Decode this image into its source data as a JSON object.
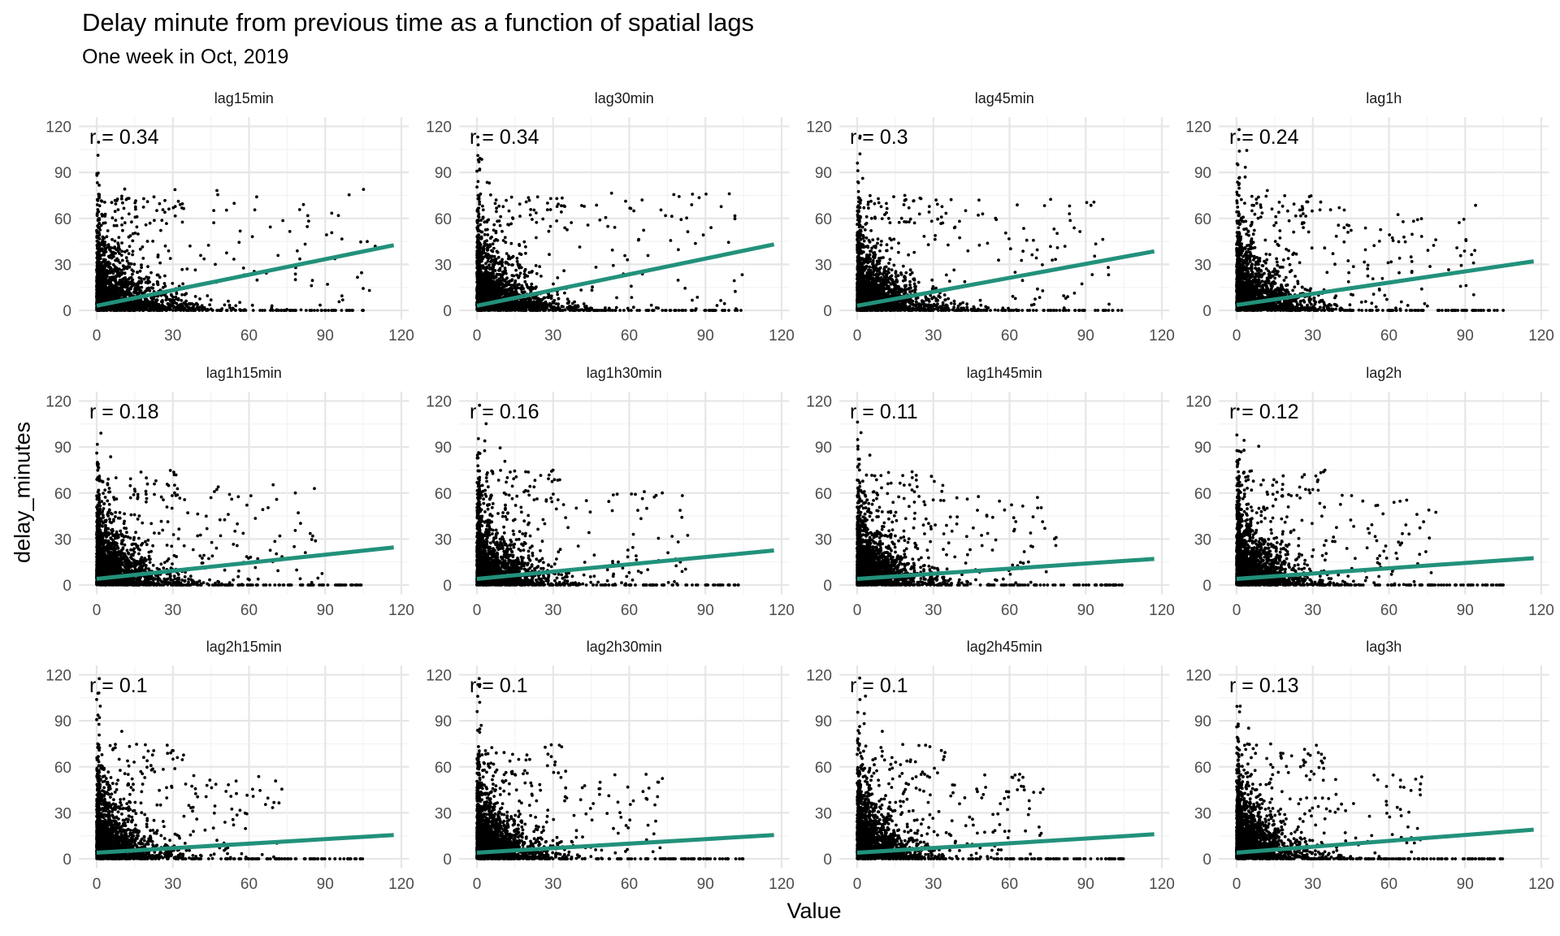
{
  "chart_data": {
    "type": "scatter",
    "title": "Delay minute from previous time as a function of spatial lags",
    "subtitle": "One week in Oct, 2019",
    "xlabel": "Value",
    "ylabel": "delay_minutes",
    "xlim": [
      0,
      120
    ],
    "ylim": [
      0,
      120
    ],
    "xticks": [
      "0",
      "30",
      "60",
      "90",
      "120"
    ],
    "yticks": [
      "0",
      "30",
      "60",
      "90",
      "120"
    ],
    "grid": true,
    "line_color": "#22917b",
    "point_color": "#000000",
    "panels": [
      {
        "label": "lag15min",
        "r": "r = 0.34",
        "fit": {
          "x0": 0,
          "y0": 3.0,
          "x1": 117,
          "y1": 42.5
        },
        "spread": 1.0
      },
      {
        "label": "lag30min",
        "r": "r = 0.34",
        "fit": {
          "x0": 0,
          "y0": 3.0,
          "x1": 117,
          "y1": 43.0
        },
        "spread": 0.95
      },
      {
        "label": "lag45min",
        "r": "r = 0.3",
        "fit": {
          "x0": 0,
          "y0": 3.0,
          "x1": 117,
          "y1": 38.5
        },
        "spread": 0.9
      },
      {
        "label": "lag1h",
        "r": "r = 0.24",
        "fit": {
          "x0": 0,
          "y0": 3.5,
          "x1": 117,
          "y1": 32.0
        },
        "spread": 0.85
      },
      {
        "label": "lag1h15min",
        "r": "r = 0.18",
        "fit": {
          "x0": 0,
          "y0": 4.0,
          "x1": 117,
          "y1": 24.5
        },
        "spread": 0.8
      },
      {
        "label": "lag1h30min",
        "r": "r = 0.16",
        "fit": {
          "x0": 0,
          "y0": 4.0,
          "x1": 117,
          "y1": 22.5
        },
        "spread": 0.75
      },
      {
        "label": "lag1h45min",
        "r": "r = 0.11",
        "fit": {
          "x0": 0,
          "y0": 4.0,
          "x1": 117,
          "y1": 17.0
        },
        "spread": 0.7
      },
      {
        "label": "lag2h",
        "r": "r = 0.12",
        "fit": {
          "x0": 0,
          "y0": 4.0,
          "x1": 117,
          "y1": 17.5
        },
        "spread": 0.7
      },
      {
        "label": "lag2h15min",
        "r": "r = 0.1",
        "fit": {
          "x0": 0,
          "y0": 4.0,
          "x1": 117,
          "y1": 15.5
        },
        "spread": 0.65
      },
      {
        "label": "lag2h30min",
        "r": "r = 0.1",
        "fit": {
          "x0": 0,
          "y0": 4.0,
          "x1": 117,
          "y1": 15.5
        },
        "spread": 0.65
      },
      {
        "label": "lag2h45min",
        "r": "r = 0.1",
        "fit": {
          "x0": 0,
          "y0": 4.0,
          "x1": 117,
          "y1": 16.0
        },
        "spread": 0.65
      },
      {
        "label": "lag3h",
        "r": "r = 0.13",
        "fit": {
          "x0": 0,
          "y0": 4.0,
          "x1": 117,
          "y1": 19.0
        },
        "spread": 0.65
      }
    ]
  }
}
